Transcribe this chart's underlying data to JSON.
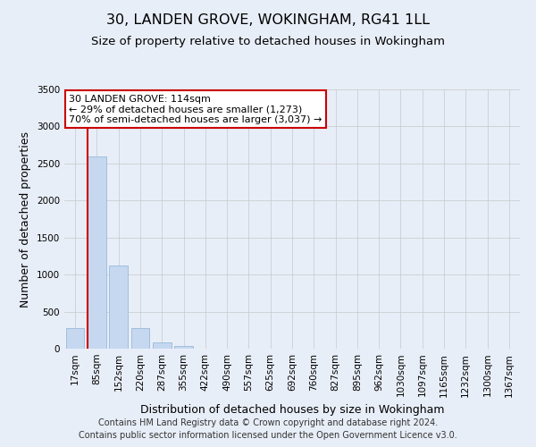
{
  "title": "30, LANDEN GROVE, WOKINGHAM, RG41 1LL",
  "subtitle": "Size of property relative to detached houses in Wokingham",
  "xlabel": "Distribution of detached houses by size in Wokingham",
  "ylabel": "Number of detached properties",
  "bar_labels": [
    "17sqm",
    "85sqm",
    "152sqm",
    "220sqm",
    "287sqm",
    "355sqm",
    "422sqm",
    "490sqm",
    "557sqm",
    "625sqm",
    "692sqm",
    "760sqm",
    "827sqm",
    "895sqm",
    "962sqm",
    "1030sqm",
    "1097sqm",
    "1165sqm",
    "1232sqm",
    "1300sqm",
    "1367sqm"
  ],
  "bar_values": [
    280,
    2600,
    1120,
    280,
    80,
    40,
    0,
    0,
    0,
    0,
    0,
    0,
    0,
    0,
    0,
    0,
    0,
    0,
    0,
    0,
    0
  ],
  "bar_color": "#c5d8f0",
  "bar_edge_color": "#a0bedd",
  "ylim": [
    0,
    3500
  ],
  "yticks": [
    0,
    500,
    1000,
    1500,
    2000,
    2500,
    3000,
    3500
  ],
  "annotation_title": "30 LANDEN GROVE: 114sqm",
  "annotation_line1": "← 29% of detached houses are smaller (1,273)",
  "annotation_line2": "70% of semi-detached houses are larger (3,037) →",
  "annotation_box_facecolor": "#ffffff",
  "annotation_box_edgecolor": "#cc0000",
  "red_line_bar_index": 1,
  "footer1": "Contains HM Land Registry data © Crown copyright and database right 2024.",
  "footer2": "Contains public sector information licensed under the Open Government Licence v3.0.",
  "background_color": "#e8eef8",
  "plot_bg_color": "#e8eef8",
  "grid_color": "#c8c8c8",
  "title_fontsize": 11.5,
  "subtitle_fontsize": 9.5,
  "axis_label_fontsize": 9,
  "tick_fontsize": 7.5,
  "footer_fontsize": 7
}
